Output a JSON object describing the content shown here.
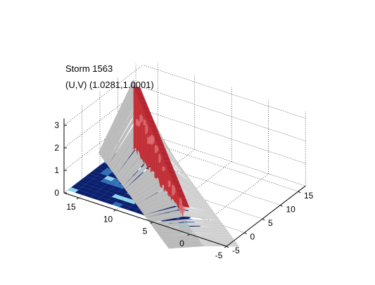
{
  "figure": {
    "title": "Storm 1563",
    "subtitle": "(U,V) (1.0281,1.0001)"
  },
  "chart_data": {
    "type": "surface",
    "x_ticks": [
      -5,
      0,
      5,
      10,
      15
    ],
    "y_ticks": [
      -5,
      0,
      5,
      10,
      15
    ],
    "z_ticks": [
      0,
      1,
      2,
      3
    ],
    "xlim": [
      -5,
      17
    ],
    "ylim": [
      -5,
      17
    ],
    "zlim": [
      0,
      3.3
    ],
    "grid": true,
    "view": "3d-perspective",
    "layers": [
      {
        "kind": "base-map",
        "colors": [
          "#0a1f6e",
          "#2f6fb8",
          "#8fd3e8",
          "#ffffff"
        ]
      },
      {
        "kind": "ridge-surface",
        "color": "#c8c8c8"
      },
      {
        "kind": "isosurface",
        "color": "#c8333a"
      }
    ],
    "colors": {
      "grid": "#000000",
      "axis": "#000000",
      "red": "#c8333a",
      "red_light": "#e07b80",
      "grey": "#c8c8c8",
      "navy": "#0a1f6e"
    }
  }
}
